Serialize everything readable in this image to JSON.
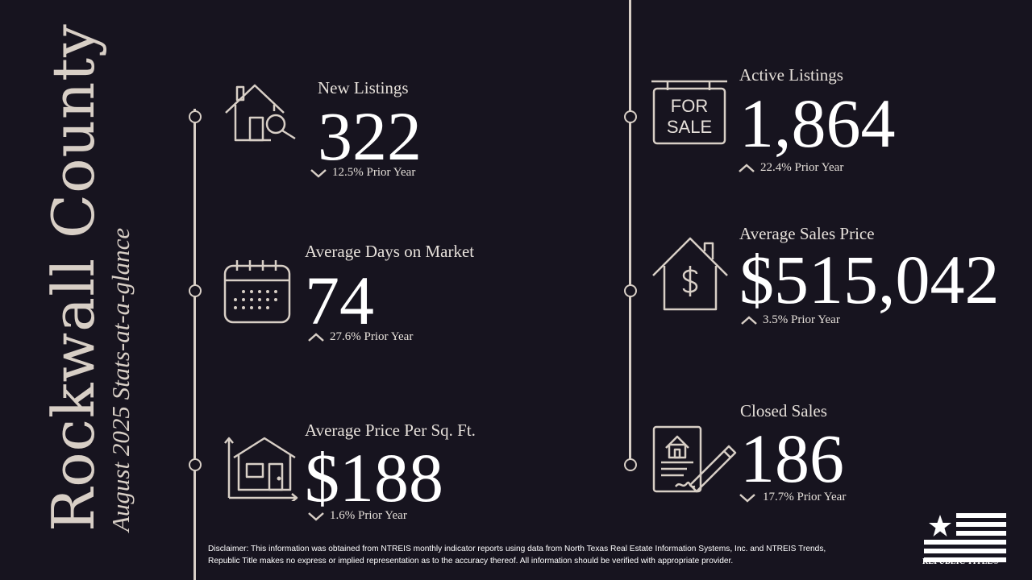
{
  "title": {
    "county": "Rockwall County",
    "subtitle": "August 2025 Stats-at-a-glance"
  },
  "colors": {
    "background": "#17141f",
    "accent": "#d8cfc6",
    "text": "#ffffff"
  },
  "stats": {
    "new_listings": {
      "label": "New Listings",
      "value": "322",
      "change": "12.5% Prior Year",
      "direction": "down",
      "icon": "house-search-icon"
    },
    "days_on_market": {
      "label": "Average Days on Market",
      "value": "74",
      "change": "27.6% Prior Year",
      "direction": "up",
      "icon": "calendar-icon"
    },
    "price_per_sqft": {
      "label": "Average Price Per Sq. Ft.",
      "value": "$188",
      "change": "1.6% Prior Year",
      "direction": "down",
      "icon": "house-dimension-icon"
    },
    "active_listings": {
      "label": "Active Listings",
      "value": "1,864",
      "change": "22.4% Prior Year",
      "direction": "up",
      "icon": "for-sale-sign-icon"
    },
    "avg_sales_price": {
      "label": "Average Sales Price",
      "value": "$515,042",
      "change": "3.5% Prior Year",
      "direction": "up",
      "icon": "house-dollar-icon"
    },
    "closed_sales": {
      "label": "Closed Sales",
      "value": "186",
      "change": "17.7% Prior Year",
      "direction": "down",
      "icon": "contract-signing-icon"
    }
  },
  "for_sale_sign": {
    "line1": "FOR",
    "line2": "SALE"
  },
  "disclaimer": "Disclaimer: This information was obtained from NTREIS monthly indicator reports using data from North Texas Real Estate Information Systems, Inc. and NTREIS Trends, Republic Title makes no express or implied representation as to the accuracy thereof. All information should be verified with appropriate provider.",
  "logo": {
    "text": "REPUBLIC TITLE®"
  }
}
